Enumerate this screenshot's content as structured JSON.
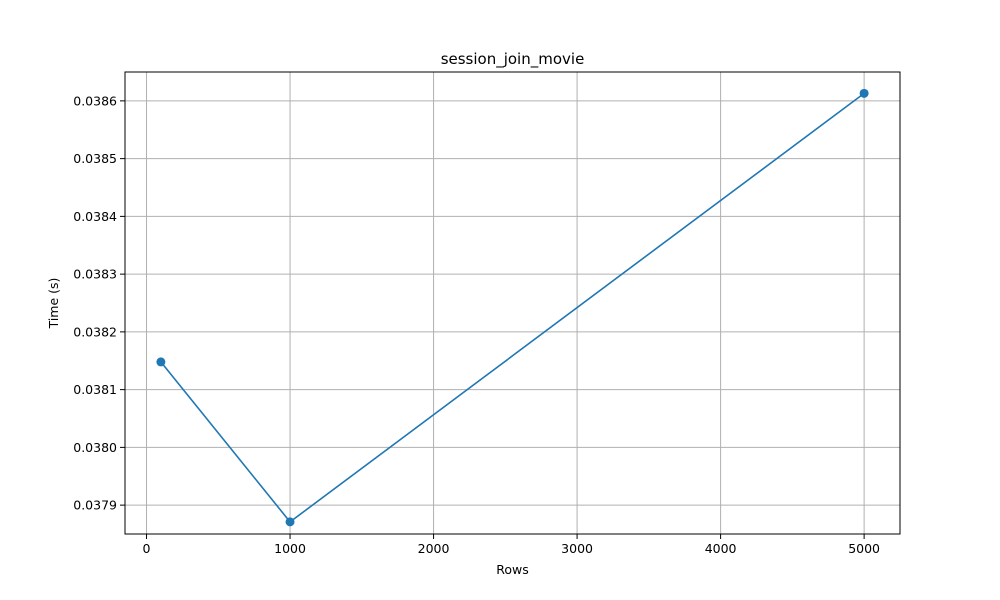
{
  "chart_data": {
    "type": "line",
    "title": "session_join_movie",
    "xlabel": "Rows",
    "ylabel": "Time (s)",
    "xlim": [
      -150,
      5250
    ],
    "ylim": [
      0.03785,
      0.03865
    ],
    "xticks": [
      0,
      1000,
      2000,
      3000,
      4000,
      5000
    ],
    "xtick_labels": [
      "0",
      "1000",
      "2000",
      "3000",
      "4000",
      "5000"
    ],
    "yticks": [
      0.0379,
      0.038,
      0.0381,
      0.0382,
      0.0383,
      0.0384,
      0.0385,
      0.0386
    ],
    "ytick_labels": [
      "0.0379",
      "0.0380",
      "0.0381",
      "0.0382",
      "0.0383",
      "0.0384",
      "0.0385",
      "0.0386"
    ],
    "grid": true,
    "series": [
      {
        "color": "#1f77b4",
        "marker": "circle",
        "x": [
          100,
          1000,
          5000
        ],
        "y": [
          0.038148,
          0.037871,
          0.038613
        ]
      }
    ]
  }
}
